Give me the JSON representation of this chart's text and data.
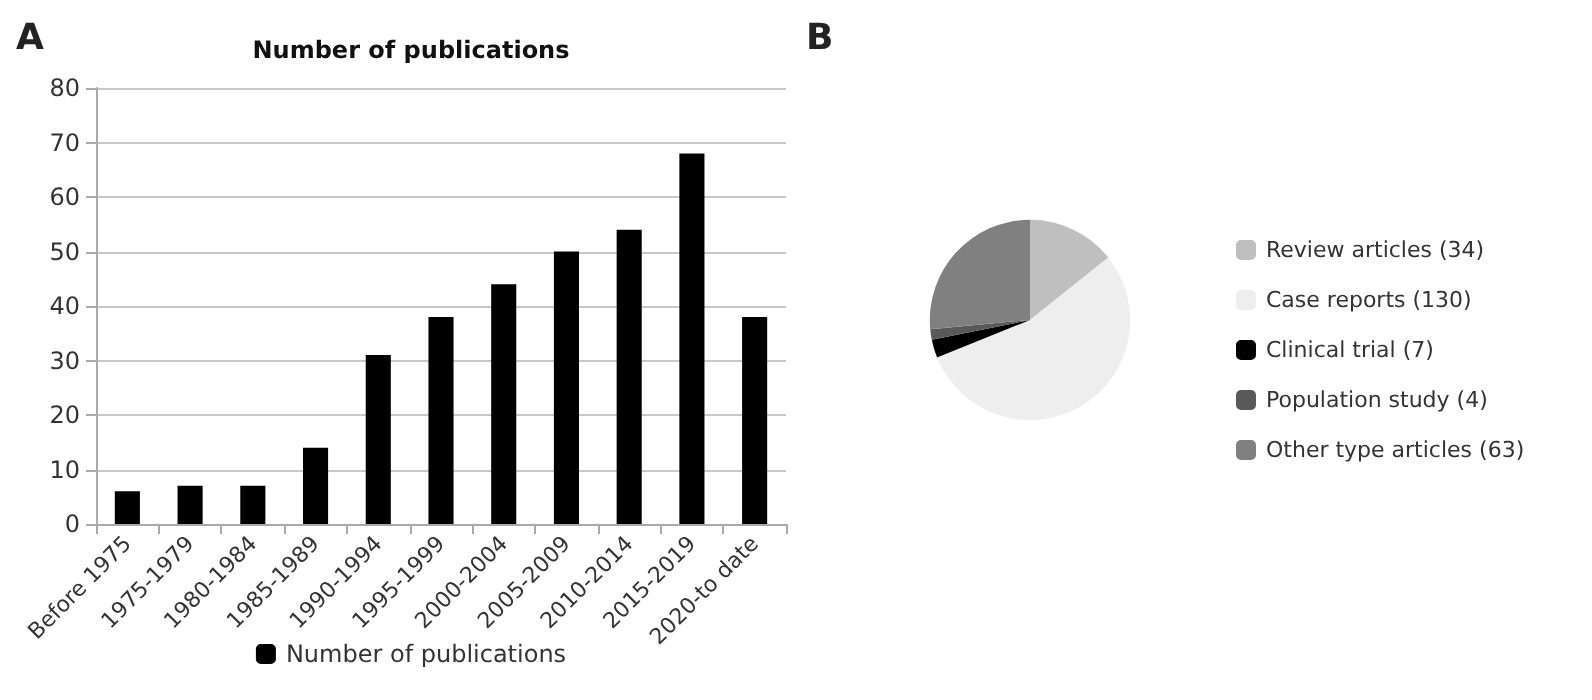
{
  "chart_data": [
    {
      "type": "bar",
      "title": "Number of publications",
      "annotations": [
        "A"
      ],
      "categories": [
        "Before 1975",
        "1975-1979",
        "1980-1984",
        "1985-1989",
        "1990-1994",
        "1995-1999",
        "2000-2004",
        "2005-2009",
        "2010-2014",
        "2015-2019",
        "2020-to date"
      ],
      "series": [
        {
          "name": "Number of publications",
          "color": "#000000",
          "values": [
            6,
            7,
            7,
            14,
            31,
            38,
            44,
            50,
            54,
            68,
            38
          ]
        }
      ],
      "ylim": [
        0,
        80
      ],
      "yticks": [
        0,
        10,
        20,
        30,
        40,
        50,
        60,
        70,
        80
      ],
      "grid": "y",
      "legend": "bottom"
    },
    {
      "type": "pie",
      "annotations": [
        "B"
      ],
      "categories": [
        "Review articles (34)",
        "Case reports (130)",
        "Clinical trial (7)",
        "Population study (4)",
        "Other type articles (63)"
      ],
      "values": [
        34,
        130,
        7,
        4,
        63
      ],
      "colors": [
        "#bfbfbf",
        "#eeeeee",
        "#000000",
        "#595959",
        "#808080"
      ],
      "legend": "right"
    }
  ]
}
